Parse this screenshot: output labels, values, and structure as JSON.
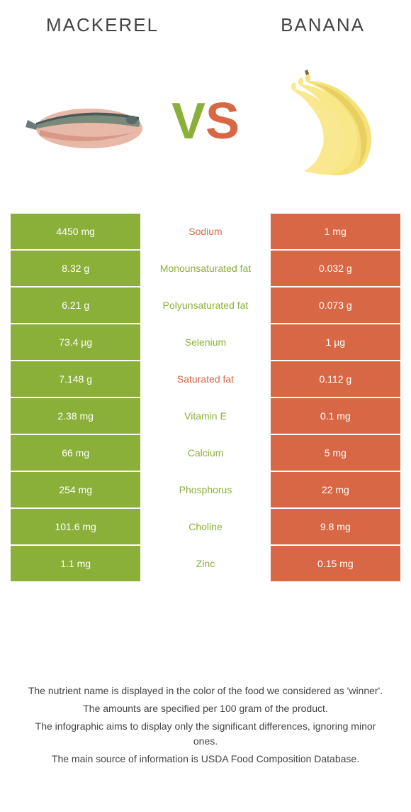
{
  "foods": {
    "left": "Mackerel",
    "right": "Banana"
  },
  "vs": {
    "v": "V",
    "s": "S"
  },
  "colors": {
    "green": "#8bb03a",
    "orange": "#d86845",
    "text": "#444444",
    "bg": "#ffffff"
  },
  "rows": [
    {
      "left": "4450 mg",
      "label": "Sodium",
      "right": "1 mg",
      "winner": "orange"
    },
    {
      "left": "8.32 g",
      "label": "Monounsaturated fat",
      "right": "0.032 g",
      "winner": "green"
    },
    {
      "left": "6.21 g",
      "label": "Polyunsaturated fat",
      "right": "0.073 g",
      "winner": "green"
    },
    {
      "left": "73.4 µg",
      "label": "Selenium",
      "right": "1 µg",
      "winner": "green"
    },
    {
      "left": "7.148 g",
      "label": "Saturated fat",
      "right": "0.112 g",
      "winner": "orange"
    },
    {
      "left": "2.38 mg",
      "label": "Vitamin E",
      "right": "0.1 mg",
      "winner": "green"
    },
    {
      "left": "66 mg",
      "label": "Calcium",
      "right": "5 mg",
      "winner": "green"
    },
    {
      "left": "254 mg",
      "label": "Phosphorus",
      "right": "22 mg",
      "winner": "green"
    },
    {
      "left": "101.6 mg",
      "label": "Choline",
      "right": "9.8 mg",
      "winner": "green"
    },
    {
      "left": "1.1 mg",
      "label": "Zinc",
      "right": "0.15 mg",
      "winner": "green"
    }
  ],
  "footnotes": [
    "The nutrient name is displayed in the color of the food we considered as 'winner'.",
    "The amounts are specified per 100 gram of the product.",
    "The infographic aims to display only the significant differences, ignoring minor ones.",
    "The main source of information is USDA Food Composition Database."
  ]
}
